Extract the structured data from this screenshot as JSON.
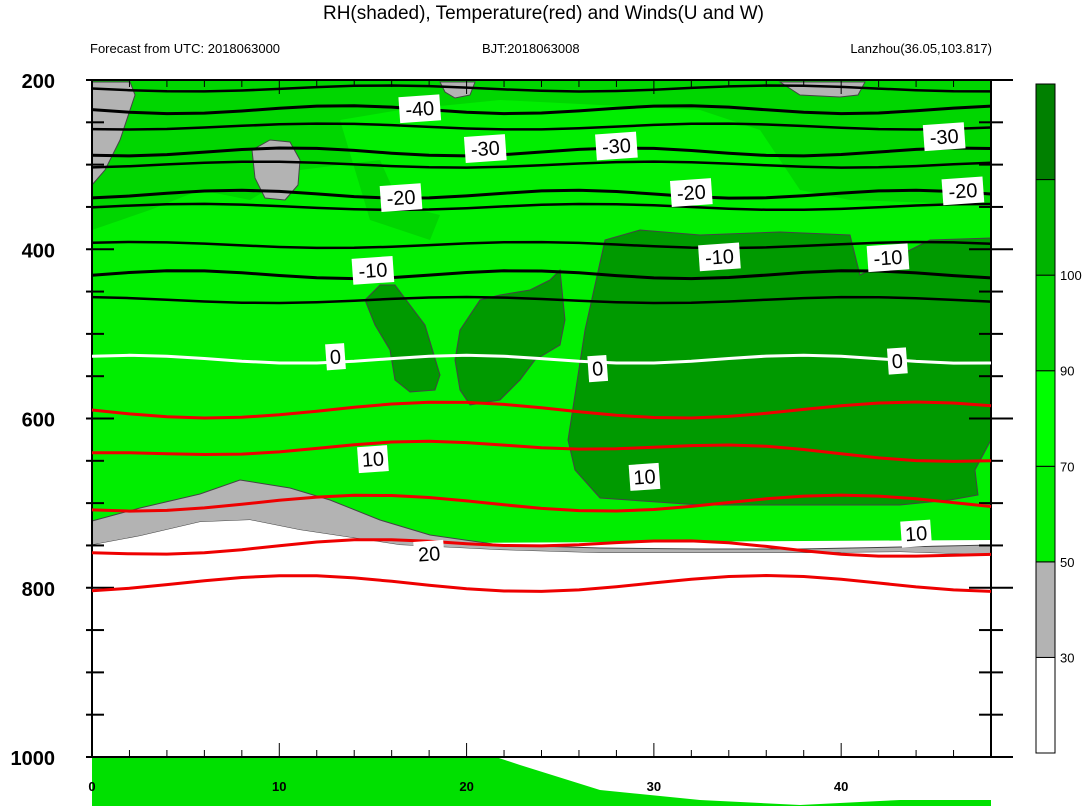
{
  "chart_data": {
    "type": "contour",
    "title": "RH(shaded), Temperature(red) and Winds(U and W)",
    "subtitle_left": "Forecast from UTC: 2018063000",
    "subtitle_center": "BJT:2018063008",
    "subtitle_right": "Lanzhou(36.05,103.817)",
    "xlim": [
      0,
      48
    ],
    "ylim": [
      1000,
      200
    ],
    "x_ticks": [
      "0",
      "10",
      "20",
      "30",
      "40"
    ],
    "y_ticks": [
      "200",
      "400",
      "600",
      "800",
      "1000"
    ],
    "colorbar": {
      "levels": [
        "30",
        "50",
        "70",
        "90",
        "100"
      ],
      "colors": [
        "#ffffff",
        "#b3b3b3",
        "#00ee00",
        "#00ff00",
        "#00d600",
        "#00b400",
        "#008000"
      ]
    },
    "temperature_contours": [
      {
        "label": "-40",
        "color": "#000000",
        "pressure": 235
      },
      {
        "label": "-30",
        "color": "#000000",
        "pressure": 285
      },
      {
        "label": "-20",
        "color": "#000000",
        "pressure": 335
      },
      {
        "label": "-10",
        "color": "#000000",
        "pressure": 430
      },
      {
        "label": "0",
        "color": "#ffffff",
        "pressure": 530
      },
      {
        "label": "10",
        "color": "#ee0000",
        "pressure": 645
      },
      {
        "label": "20",
        "color": "#ee0000",
        "pressure": 760
      }
    ],
    "contour_labels": [
      {
        "text": "-40",
        "x": 17.5,
        "p": 234
      },
      {
        "text": "-30",
        "x": 21,
        "p": 281
      },
      {
        "text": "-30",
        "x": 28,
        "p": 278
      },
      {
        "text": "-30",
        "x": 45.5,
        "p": 267
      },
      {
        "text": "-20",
        "x": 16.5,
        "p": 339
      },
      {
        "text": "-20",
        "x": 32,
        "p": 333
      },
      {
        "text": "-20",
        "x": 46.5,
        "p": 331
      },
      {
        "text": "-10",
        "x": 15,
        "p": 425
      },
      {
        "text": "-10",
        "x": 33.5,
        "p": 409
      },
      {
        "text": "-10",
        "x": 42.5,
        "p": 410
      },
      {
        "text": "0",
        "x": 13,
        "p": 527
      },
      {
        "text": "0",
        "x": 27,
        "p": 541
      },
      {
        "text": "0",
        "x": 43,
        "p": 532
      },
      {
        "text": "10",
        "x": 15,
        "p": 648
      },
      {
        "text": "10",
        "x": 29.5,
        "p": 669
      },
      {
        "text": "10",
        "x": 44,
        "p": 736
      },
      {
        "text": "20",
        "x": 18,
        "p": 760
      }
    ]
  }
}
